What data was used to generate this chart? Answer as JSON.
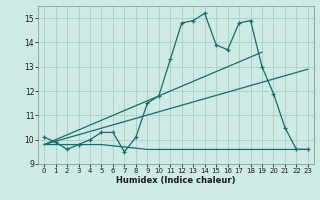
{
  "xlabel": "Humidex (Indice chaleur)",
  "xlim": [
    -0.5,
    23.5
  ],
  "ylim": [
    9,
    15.5
  ],
  "yticks": [
    9,
    10,
    11,
    12,
    13,
    14,
    15
  ],
  "xticks": [
    0,
    1,
    2,
    3,
    4,
    5,
    6,
    7,
    8,
    9,
    10,
    11,
    12,
    13,
    14,
    15,
    16,
    17,
    18,
    19,
    20,
    21,
    22,
    23
  ],
  "background_color": "#ceeae4",
  "grid_color": "#aacfc8",
  "line_color": "#1a6b6b",
  "series1_x": [
    0,
    1,
    2,
    3,
    4,
    5,
    6,
    7,
    8,
    9,
    10,
    11,
    12,
    13,
    14,
    15,
    16,
    17,
    18,
    19,
    20,
    21,
    22,
    23
  ],
  "series1_y": [
    10.1,
    9.9,
    9.6,
    9.8,
    10.0,
    10.3,
    10.3,
    9.5,
    10.1,
    11.5,
    11.8,
    13.3,
    14.8,
    14.9,
    15.2,
    13.9,
    13.7,
    14.8,
    14.9,
    13.0,
    11.9,
    10.5,
    9.6,
    9.6
  ],
  "series2_x": [
    0,
    19
  ],
  "series2_y": [
    9.8,
    13.6
  ],
  "series3_x": [
    0,
    5,
    9,
    22,
    23
  ],
  "series3_y": [
    9.8,
    9.8,
    9.6,
    9.6,
    9.6
  ],
  "series4_x": [
    0,
    23
  ],
  "series4_y": [
    9.8,
    12.9
  ]
}
